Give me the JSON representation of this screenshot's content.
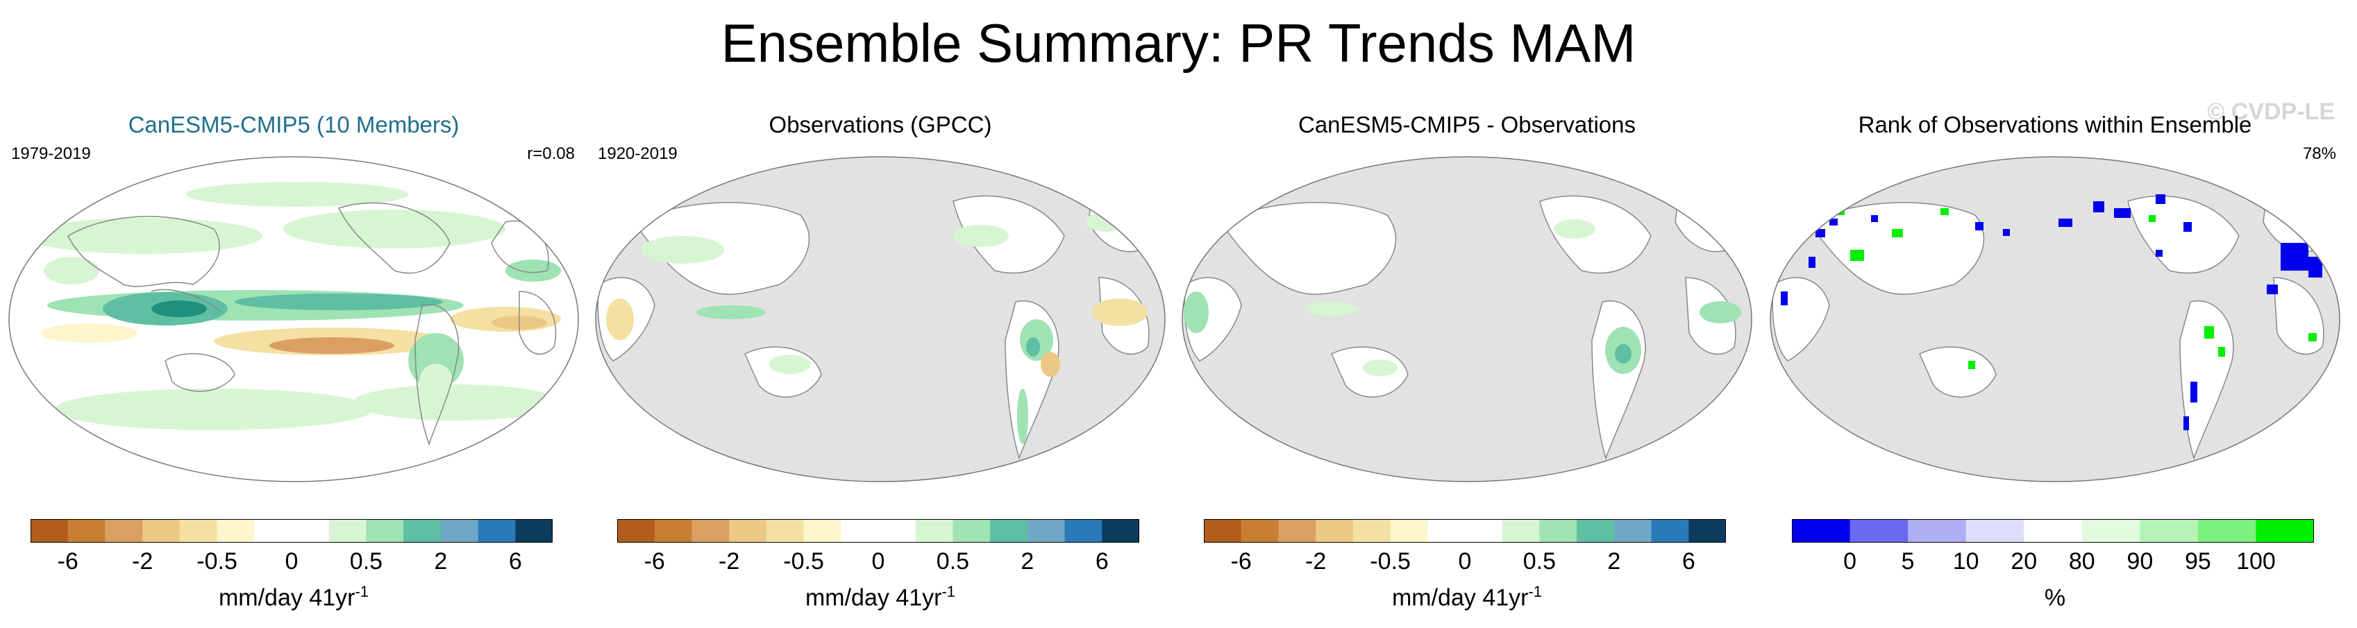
{
  "title": "Ensemble Summary: PR Trends MAM",
  "watermark": "© CVDP-LE",
  "colors": {
    "ocean_gray": "#e2e2e2",
    "land_gray": "#d9d9d9",
    "title_teal": "#1f6f8b"
  },
  "panels": [
    {
      "title": "CanESM5-CMIP5 (10 Members)",
      "left_label": "1979-2019",
      "right_label": "r=0.08",
      "colorbar": {
        "colors": [
          "#b35d1c",
          "#c97e35",
          "#dba061",
          "#ecc886",
          "#f4e0a3",
          "#fdf5cc",
          "#ffffff",
          "#ffffff",
          "#d8f5d3",
          "#9fe2b4",
          "#5ebfa2",
          "#6fa7c4",
          "#2a7ab9",
          "#0b3c5d"
        ],
        "tick_labels": [
          "-6",
          "-2",
          "-0.5",
          "0",
          "0.5",
          "2",
          "6"
        ],
        "label": "mm/day 41yr",
        "label_sup": "-1"
      }
    },
    {
      "title": "Observations (GPCC)",
      "left_label": "1920-2019",
      "right_label": "",
      "colorbar": {
        "colors": [
          "#b35d1c",
          "#c97e35",
          "#dba061",
          "#ecc886",
          "#f4e0a3",
          "#fdf5cc",
          "#ffffff",
          "#ffffff",
          "#d8f5d3",
          "#9fe2b4",
          "#5ebfa2",
          "#6fa7c4",
          "#2a7ab9",
          "#0b3c5d"
        ],
        "tick_labels": [
          "-6",
          "-2",
          "-0.5",
          "0",
          "0.5",
          "2",
          "6"
        ],
        "label": "mm/day 41yr",
        "label_sup": "-1"
      }
    },
    {
      "title": "CanESM5-CMIP5 - Observations",
      "left_label": "",
      "right_label": "",
      "colorbar": {
        "colors": [
          "#b35d1c",
          "#c97e35",
          "#dba061",
          "#ecc886",
          "#f4e0a3",
          "#fdf5cc",
          "#ffffff",
          "#ffffff",
          "#d8f5d3",
          "#9fe2b4",
          "#5ebfa2",
          "#6fa7c4",
          "#2a7ab9",
          "#0b3c5d"
        ],
        "tick_labels": [
          "-6",
          "-2",
          "-0.5",
          "0",
          "0.5",
          "2",
          "6"
        ],
        "label": "mm/day 41yr",
        "label_sup": "-1"
      }
    },
    {
      "title": "Rank of Observations within Ensemble",
      "left_label": "",
      "right_label": "78%",
      "colorbar": {
        "colors": [
          "#0000ee",
          "#6a6af0",
          "#aeaef5",
          "#dedefa",
          "#ffffff",
          "#e0fbe0",
          "#b4f3b4",
          "#7cf07c",
          "#00ee00"
        ],
        "tick_labels": [
          "0",
          "5",
          "10",
          "20",
          "80",
          "90",
          "95",
          "100"
        ],
        "label": "%",
        "label_sup": ""
      }
    }
  ],
  "chart_data": [
    {
      "type": "heatmap",
      "title": "CanESM5-CMIP5 (10 Members)",
      "period": "1979-2019",
      "stat": "r=0.08",
      "variable": "PR trend MAM",
      "units": "mm/day 41yr-1",
      "levels": [
        -6,
        -4,
        -2,
        -1,
        -0.5,
        -0.2,
        0,
        0.2,
        0.5,
        1,
        2,
        4,
        6
      ],
      "notable_features": [
        "green/teal wet trends along equatorial Pacific and Maritime Continent",
        "orange dry trend band in tropical South Pacific",
        "wet trend bands at mid-latitudes"
      ]
    },
    {
      "type": "heatmap",
      "title": "Observations (GPCC)",
      "period": "1920-2019",
      "variable": "PR trend MAM",
      "units": "mm/day 41yr-1",
      "levels": [
        -6,
        -4,
        -2,
        -1,
        -0.5,
        -0.2,
        0,
        0.2,
        0.5,
        1,
        2,
        4,
        6
      ],
      "notable_features": [
        "land-only field, ocean gray",
        "wet trends over South America and Maritime Continent",
        "dry trends over eastern Brazil and West Africa"
      ]
    },
    {
      "type": "heatmap",
      "title": "CanESM5-CMIP5 - Observations",
      "units": "mm/day 41yr-1",
      "levels": [
        -6,
        -4,
        -2,
        -1,
        -0.5,
        -0.2,
        0,
        0.2,
        0.5,
        1,
        2,
        4,
        6
      ],
      "notable_features": [
        "land-only difference field",
        "mostly positive (green) differences over tropical land"
      ]
    },
    {
      "type": "heatmap",
      "title": "Rank of Observations within Ensemble",
      "stat": "78%",
      "units": "%",
      "levels": [
        0,
        5,
        10,
        20,
        80,
        90,
        95,
        100
      ],
      "notable_features": [
        "blue (low rank) patches over Eurasia, Alaska, Canada, Africa",
        "green (high rank) patches over central Asia, western Amazon, eastern Australia"
      ]
    }
  ]
}
